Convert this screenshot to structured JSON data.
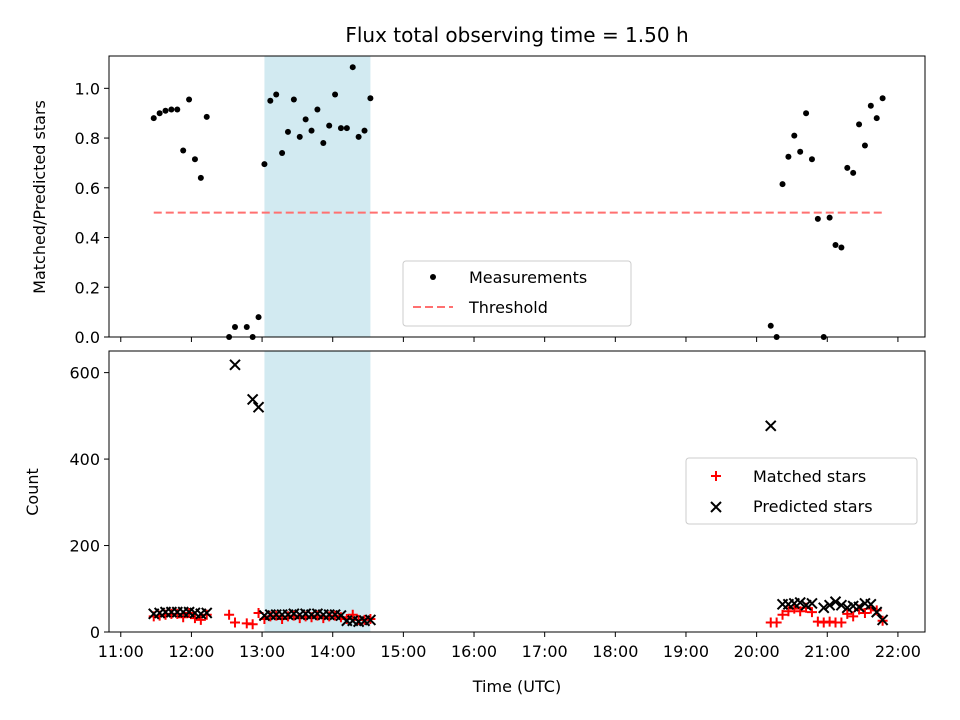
{
  "colors": {
    "measurement": "#000000",
    "threshold": "#ff7070",
    "shade": "#add8e6",
    "matched": "#ff0000",
    "predicted": "#000000"
  },
  "chart_data": [
    {
      "type": "scatter",
      "title": "Flux total observing time = 1.50 h",
      "xlabel": "",
      "ylabel": "Matched/Predicted stars",
      "xlim": [
        "11:00",
        "22:00"
      ],
      "ylim": [
        0,
        1.13
      ],
      "yticks": [
        "0.0",
        "0.2",
        "0.4",
        "0.6",
        "0.8",
        "1.0"
      ],
      "shaded_region": [
        "13:02",
        "14:32"
      ],
      "legend": {
        "position": "lower-center",
        "entries": [
          "Measurements",
          "Threshold"
        ]
      },
      "threshold": {
        "name": "Threshold",
        "value": 0.5,
        "x": [
          "11:28",
          "21:48"
        ]
      },
      "series": [
        {
          "name": "Measurements",
          "x": [
            "11:28",
            "11:33",
            "11:38",
            "11:43",
            "11:48",
            "11:53",
            "11:58",
            "12:03",
            "12:08",
            "12:13",
            "12:32",
            "12:37",
            "12:47",
            "12:52",
            "12:57",
            "13:02",
            "13:07",
            "13:12",
            "13:17",
            "13:22",
            "13:27",
            "13:32",
            "13:37",
            "13:42",
            "13:47",
            "13:52",
            "13:57",
            "14:02",
            "14:07",
            "14:12",
            "14:17",
            "14:22",
            "14:27",
            "14:32",
            "20:12",
            "20:17",
            "20:22",
            "20:27",
            "20:32",
            "20:37",
            "20:42",
            "20:47",
            "20:52",
            "20:57",
            "21:02",
            "21:07",
            "21:12",
            "21:17",
            "21:22",
            "21:27",
            "21:32",
            "21:37",
            "21:42",
            "21:47"
          ],
          "y": [
            0.88,
            0.9,
            0.91,
            0.915,
            0.915,
            0.75,
            0.955,
            0.715,
            0.64,
            0.885,
            0.0,
            0.04,
            0.04,
            0.0,
            0.08,
            0.695,
            0.95,
            0.975,
            0.74,
            0.825,
            0.955,
            0.805,
            0.875,
            0.83,
            0.915,
            0.78,
            0.85,
            0.975,
            0.84,
            0.84,
            1.085,
            0.805,
            0.83,
            0.96,
            0.045,
            0.0,
            0.615,
            0.725,
            0.81,
            0.745,
            0.9,
            0.715,
            0.475,
            0.0,
            0.48,
            0.37,
            0.36,
            0.68,
            0.66,
            0.855,
            0.77,
            0.93,
            0.88,
            0.96
          ]
        }
      ]
    },
    {
      "type": "scatter",
      "title": "",
      "xlabel": "Time (UTC)",
      "ylabel": "Count",
      "xlim": [
        "11:00",
        "22:00"
      ],
      "ylim": [
        0,
        650
      ],
      "yticks": [
        "0",
        "200",
        "400",
        "600"
      ],
      "xticks": [
        "11:00",
        "12:00",
        "13:00",
        "14:00",
        "15:00",
        "16:00",
        "17:00",
        "18:00",
        "19:00",
        "20:00",
        "21:00",
        "22:00"
      ],
      "shaded_region": [
        "13:02",
        "14:32"
      ],
      "legend": {
        "position": "center-right",
        "entries": [
          "Matched stars",
          "Predicted stars"
        ]
      },
      "series": [
        {
          "name": "Matched stars",
          "marker": "+",
          "x": [
            "11:28",
            "11:33",
            "11:38",
            "11:43",
            "11:48",
            "11:53",
            "11:58",
            "12:03",
            "12:08",
            "12:13",
            "12:32",
            "12:37",
            "12:47",
            "12:52",
            "12:57",
            "13:02",
            "13:07",
            "13:12",
            "13:17",
            "13:22",
            "13:27",
            "13:32",
            "13:37",
            "13:42",
            "13:47",
            "13:52",
            "13:57",
            "14:02",
            "14:07",
            "14:12",
            "14:17",
            "14:22",
            "14:27",
            "14:32",
            "20:12",
            "20:17",
            "20:22",
            "20:27",
            "20:32",
            "20:37",
            "20:42",
            "20:47",
            "20:52",
            "20:57",
            "21:02",
            "21:07",
            "21:12",
            "21:17",
            "21:22",
            "21:27",
            "21:32",
            "21:37",
            "21:42",
            "21:47"
          ],
          "y": [
            36,
            38,
            40,
            42,
            42,
            34,
            44,
            32,
            28,
            40,
            40,
            22,
            20,
            18,
            44,
            30,
            36,
            38,
            30,
            36,
            38,
            32,
            36,
            34,
            38,
            32,
            36,
            38,
            34,
            30,
            40,
            28,
            28,
            30,
            22,
            22,
            40,
            48,
            54,
            48,
            56,
            46,
            24,
            22,
            24,
            22,
            22,
            42,
            36,
            52,
            44,
            54,
            50,
            26
          ]
        },
        {
          "name": "Predicted stars",
          "marker": "x",
          "x": [
            "11:28",
            "11:33",
            "11:38",
            "11:43",
            "11:48",
            "11:53",
            "11:58",
            "12:03",
            "12:08",
            "12:13",
            "12:37",
            "12:52",
            "12:57",
            "13:02",
            "13:07",
            "13:12",
            "13:17",
            "13:22",
            "13:27",
            "13:32",
            "13:37",
            "13:42",
            "13:47",
            "13:52",
            "13:57",
            "14:02",
            "14:07",
            "14:12",
            "14:17",
            "14:22",
            "14:27",
            "14:32",
            "20:12",
            "20:22",
            "20:27",
            "20:32",
            "20:37",
            "20:42",
            "20:47",
            "20:57",
            "21:02",
            "21:07",
            "21:12",
            "21:17",
            "21:22",
            "21:27",
            "21:32",
            "21:37",
            "21:42",
            "21:47"
          ],
          "y": [
            42,
            44,
            46,
            46,
            46,
            46,
            46,
            44,
            42,
            44,
            618,
            538,
            520,
            38,
            40,
            40,
            40,
            40,
            42,
            40,
            42,
            40,
            42,
            40,
            40,
            40,
            38,
            26,
            26,
            24,
            26,
            28,
            477,
            64,
            64,
            66,
            68,
            62,
            66,
            56,
            62,
            70,
            62,
            56,
            60,
            58,
            66,
            64,
            46,
            28
          ]
        }
      ]
    }
  ]
}
